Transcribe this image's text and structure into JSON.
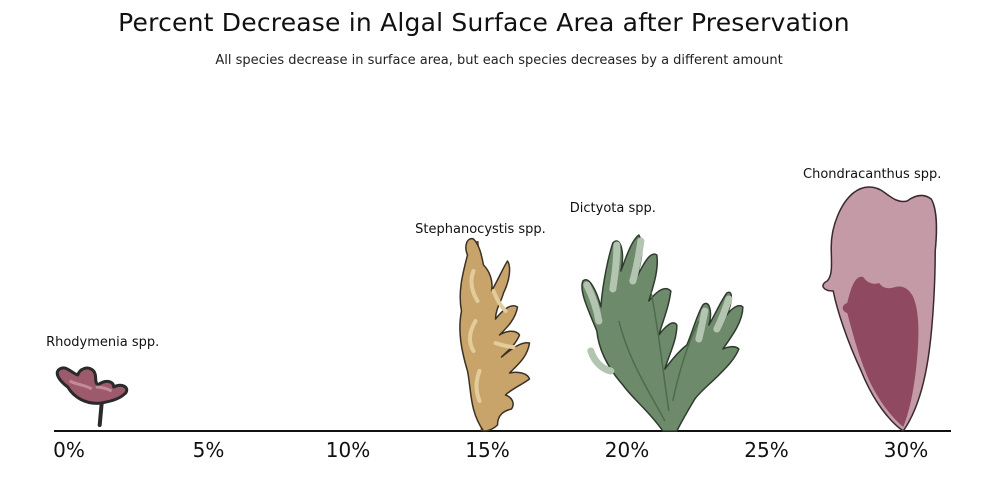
{
  "chart_data": {
    "type": "scatter",
    "title": "Percent Decrease in Algal Surface Area after Preservation",
    "subtitle": "All species decrease in surface area, but each species decreases by a different amount",
    "xlim": [
      0,
      30
    ],
    "x_ticks": [
      "0%",
      "5%",
      "10%",
      "15%",
      "20%",
      "25%",
      "30%"
    ],
    "x_tick_values": [
      0,
      5,
      10,
      15,
      20,
      25,
      30
    ],
    "grid": false,
    "points": [
      {
        "label": "Rhodymenia spp.",
        "x": 1.1,
        "icon": "rhodymenia-icon"
      },
      {
        "label": "Stephanocystis spp.",
        "x": 15.0,
        "icon": "stephanocystis-icon"
      },
      {
        "label": "Dictyota spp.",
        "x": 21.5,
        "icon": "dictyota-icon"
      },
      {
        "label": "Chondracanthus spp.",
        "x": 29.9,
        "icon": "chondracanthus-icon"
      }
    ]
  },
  "colors": {
    "rhodymenia_fill": "#9c5a6c",
    "rhodymenia_light": "#c48a98",
    "stephanocystis_fill": "#c9a46a",
    "stephanocystis_light": "#e3cc9c",
    "dictyota_fill": "#6d8a6a",
    "dictyota_light": "#b3c4b0",
    "chondracanthus_outer": "#c39aa6",
    "chondracanthus_inner": "#8f4a62"
  }
}
